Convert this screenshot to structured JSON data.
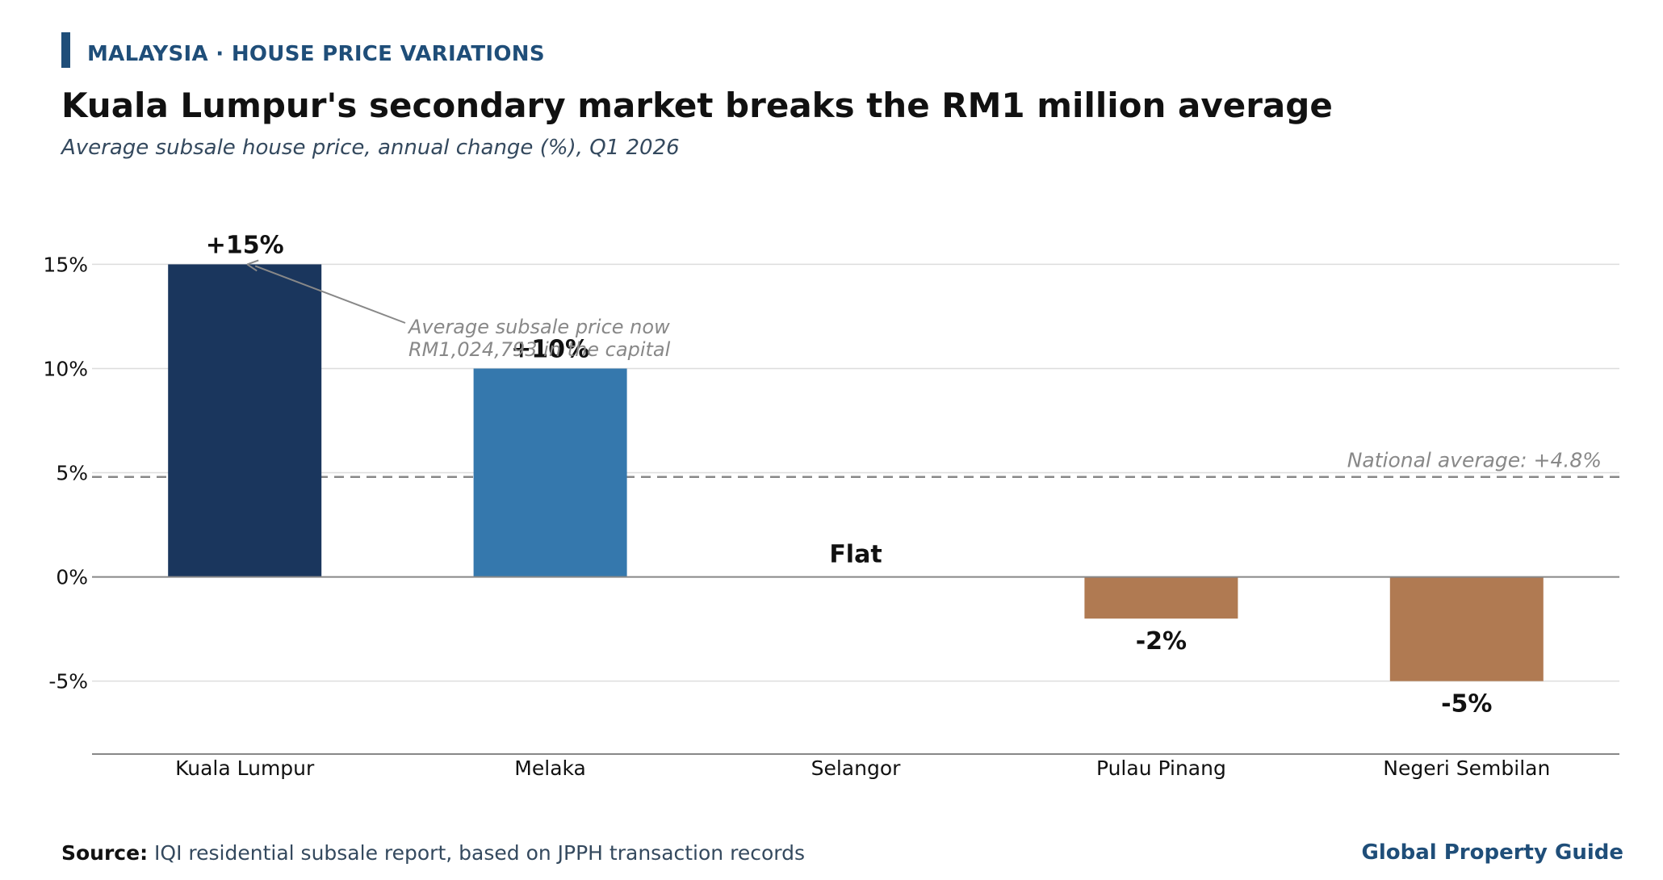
{
  "header": {
    "kicker": "MALAYSIA · HOUSE PRICE VARIATIONS",
    "title": "Kuala Lumpur's secondary market breaks the RM1 million average",
    "subtitle": "Average subsale house price, annual change (%), Q1 2026"
  },
  "footer": {
    "source_label": "Source:",
    "source_text": " IQI residential subsale report, based on JPPH transaction records",
    "brand": "Global Property Guide"
  },
  "colors": {
    "accent": "#1f4e79",
    "kl": "#1a365d",
    "melaka": "#3578ad",
    "negative": "#b07a52",
    "reference": "#888888",
    "grid": "#dddddd"
  },
  "chart_data": {
    "type": "bar",
    "categories": [
      "Kuala Lumpur",
      "Melaka",
      "Selangor",
      "Pulau Pinang",
      "Negeri Sembilan"
    ],
    "values": [
      15,
      10,
      0,
      -2,
      -5
    ],
    "value_labels": [
      "+15%",
      "+10%",
      "Flat",
      "-2%",
      "-5%"
    ],
    "bar_colors": [
      "#1a365d",
      "#3578ad",
      "#3578ad",
      "#b07a52",
      "#b07a52"
    ],
    "ylim": [
      -8.5,
      18
    ],
    "yticks": [
      15,
      10,
      5,
      0,
      -5
    ],
    "ytick_labels": [
      "15%",
      "10%",
      "5%",
      "0%",
      "-5%"
    ],
    "grid": true,
    "reference_line": {
      "value": 4.8,
      "label": "National average: +4.8%"
    },
    "annotation": {
      "category": "Kuala Lumpur",
      "value": 15,
      "lines": [
        "Average subsale price now",
        "RM1,024,793 in the capital"
      ]
    }
  }
}
